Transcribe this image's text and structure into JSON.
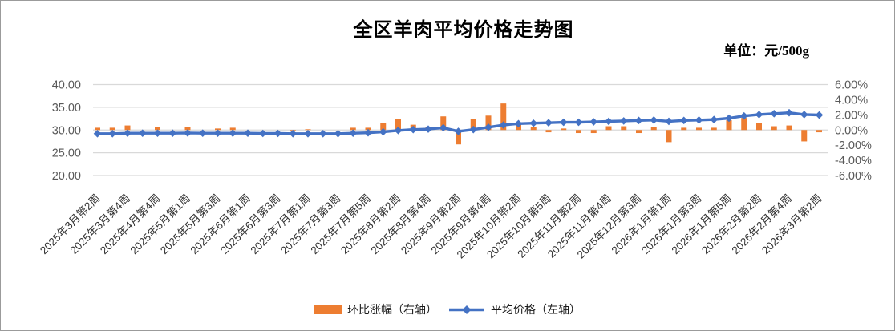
{
  "title": "全区羊肉平均价格走势图",
  "unit_label": "单位：元/500g",
  "legend": {
    "bar_label": "环比涨幅（右轴）",
    "line_label": "平均价格（左轴）"
  },
  "colors": {
    "bar": "#ED7D31",
    "line": "#4472C4",
    "grid": "#D9D9D9",
    "axis_text": "#595959",
    "category_text": "#333333"
  },
  "chart_data": {
    "type": "combo",
    "title": "全区羊肉平均价格走势图",
    "subtitle": "单位：元/500g",
    "n_points": 49,
    "label_every": 2,
    "grid": "horizontal-only",
    "legend_position": "bottom",
    "categories": [
      "2025年3月第2周",
      "2025年3月第4周",
      "2025年4月第4周",
      "2025年5月第1周",
      "2025年5月第3周",
      "2025年6月第1周",
      "2025年6月第3周",
      "2025年7月第1周",
      "2025年7月第3周",
      "2025年7月第5周",
      "2025年8月第2周",
      "2025年8月第4周",
      "2025年9月第2周",
      "2025年9月第4周",
      "2025年10月第2周",
      "2025年10月第5周",
      "2025年11月第2周",
      "2025年11月第4周",
      "2025年12月第3周",
      "2026年1月第1周",
      "2026年1月第3周",
      "2026年1月第5周",
      "2026年2月第2周",
      "2026年2月第4周",
      "2026年3月第2周"
    ],
    "left_axis": {
      "min": 20,
      "max": 40,
      "step": 5,
      "ticks": [
        "40.00",
        "35.00",
        "30.00",
        "25.00",
        "20.00"
      ]
    },
    "right_axis": {
      "min": -6,
      "max": 6,
      "step": 2,
      "ticks": [
        "6.00%",
        "4.00%",
        "2.00%",
        "0.00%",
        "-2.00%",
        "-4.00%",
        "-6.00%"
      ]
    },
    "series": [
      {
        "name": "环比涨幅（右轴）",
        "type": "bar",
        "axis": "right",
        "color": "#ED7D31",
        "values": [
          0.3,
          0.3,
          0.6,
          0.0,
          0.4,
          0.0,
          0.4,
          0.0,
          0.2,
          0.3,
          0.0,
          0.0,
          0.0,
          -0.1,
          0.1,
          0.0,
          0.0,
          0.3,
          0.3,
          0.9,
          1.4,
          0.7,
          0.4,
          1.8,
          -1.9,
          1.5,
          1.9,
          3.5,
          0.9,
          0.4,
          -0.3,
          0.2,
          -0.4,
          -0.4,
          0.5,
          0.5,
          -0.4,
          0.4,
          -1.6,
          0.3,
          0.3,
          0.3,
          1.3,
          1.6,
          0.9,
          0.5,
          0.6,
          -1.5,
          -0.3
        ]
      },
      {
        "name": "平均价格（左轴）",
        "type": "line",
        "axis": "left",
        "color": "#4472C4",
        "values": [
          29.2,
          29.2,
          29.3,
          29.3,
          29.3,
          29.3,
          29.35,
          29.3,
          29.3,
          29.3,
          29.3,
          29.25,
          29.25,
          29.2,
          29.2,
          29.2,
          29.2,
          29.3,
          29.4,
          29.6,
          29.9,
          30.1,
          30.2,
          30.5,
          29.7,
          30.1,
          30.6,
          31.1,
          31.4,
          31.5,
          31.6,
          31.7,
          31.7,
          31.8,
          31.9,
          32.0,
          32.1,
          32.2,
          31.9,
          32.1,
          32.2,
          32.3,
          32.6,
          33.1,
          33.4,
          33.6,
          33.8,
          33.4,
          33.3
        ]
      }
    ]
  }
}
